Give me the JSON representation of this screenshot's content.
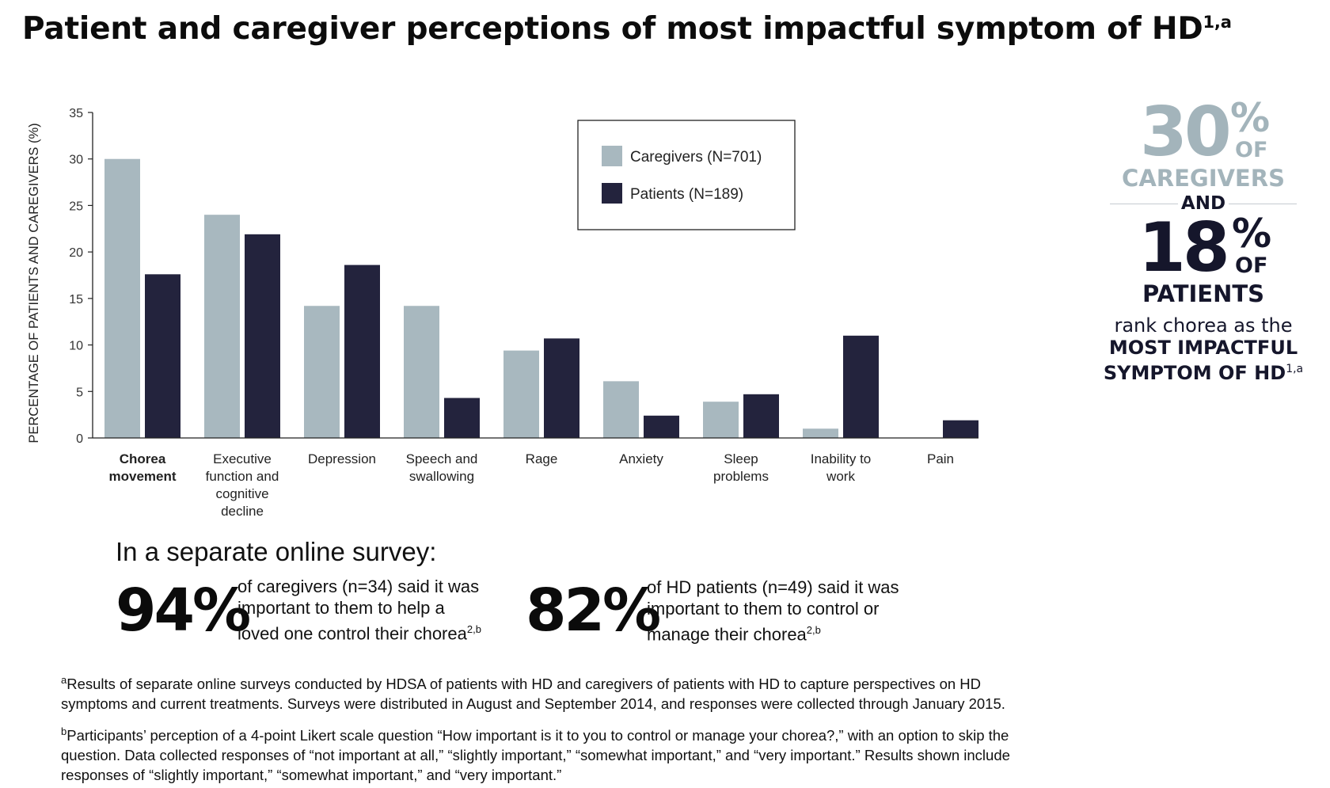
{
  "title": {
    "text": "Patient and caregiver perceptions of most impactful symptom of HD",
    "sup": "1,a"
  },
  "chart_data": {
    "type": "bar",
    "ylabel": "PERCENTAGE OF PATIENTS AND CAREGIVERS (%)",
    "ylim": [
      0,
      35
    ],
    "yticks": [
      0,
      5,
      10,
      15,
      20,
      25,
      30,
      35
    ],
    "grid": false,
    "legend_position": "top-right",
    "categories": [
      [
        "Chorea",
        "movement"
      ],
      [
        "Executive",
        "function and",
        "cognitive",
        "decline"
      ],
      [
        "Depression"
      ],
      [
        "Speech and",
        "swallowing"
      ],
      [
        "Rage"
      ],
      [
        "Anxiety"
      ],
      [
        "Sleep",
        "problems"
      ],
      [
        "Inability to",
        "work"
      ],
      [
        "Pain"
      ]
    ],
    "series": [
      {
        "name": "Caregivers (N=701)",
        "color": "#a8b8bf",
        "values": [
          30,
          24,
          14.2,
          14.2,
          9.4,
          6.1,
          3.9,
          1.0,
          0
        ]
      },
      {
        "name": "Patients (N=189)",
        "color": "#23233d",
        "values": [
          17.6,
          21.9,
          18.6,
          4.3,
          10.7,
          2.4,
          4.7,
          11.0,
          1.9
        ]
      }
    ]
  },
  "callout": {
    "caregivers_pct": "30",
    "caregivers_pct_sign": "%",
    "caregivers_of": "OF",
    "caregivers_label": "CAREGIVERS",
    "and": "AND",
    "patients_pct": "18",
    "patients_pct_sign": "%",
    "patients_of": "OF",
    "patients_label": "PATIENTS",
    "line1": "rank chorea as the",
    "line2": "MOST IMPACTFUL",
    "line3": "SYMPTOM OF HD",
    "line3_sup": "1,a",
    "colors": {
      "light": "#a3b4bb",
      "dark": "#15162b"
    }
  },
  "survey": {
    "heading": "In a separate online survey:",
    "stats": [
      {
        "pct": "94%",
        "lines": [
          "of caregivers (n=34) said it was",
          "important to them to help a",
          "loved one control their chorea"
        ],
        "sup": "2,b"
      },
      {
        "pct": "82%",
        "lines": [
          "of HD patients (n=49) said it was",
          "important to them to control or",
          "manage their chorea"
        ],
        "sup": "2,b"
      }
    ]
  },
  "footnotes": [
    {
      "mark": "a",
      "lines": [
        "Results of separate online surveys conducted by HDSA of patients with HD and caregivers of patients with HD to capture perspectives on HD",
        "symptoms and current treatments. Surveys were distributed in August and September 2014, and responses were collected through January 2015."
      ]
    },
    {
      "mark": "b",
      "lines": [
        "Participants’ perception of a 4-point Likert scale question “How important is it to you to control or manage your chorea?,” with an option to skip the",
        "question. Data collected responses of “not important at all,” “slightly important,” “somewhat important,” and “very important.” Results shown include",
        "responses of “slightly important,” “somewhat important,” and “very important.”"
      ]
    }
  ]
}
